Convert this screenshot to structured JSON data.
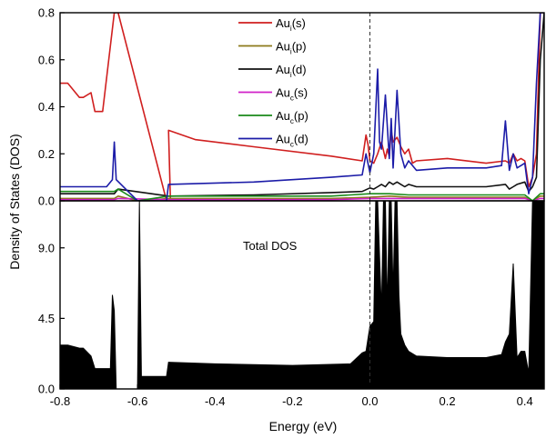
{
  "chart_data": [
    {
      "type": "line",
      "panel": "top",
      "title": "",
      "xlabel": "Energy (eV)",
      "ylabel": "Density of States (DOS)",
      "xlim": [
        -0.8,
        0.45
      ],
      "ylim": [
        0,
        0.8
      ],
      "yticks": [
        "0.0",
        "0.2",
        "0.4",
        "0.6",
        "0.8"
      ],
      "fermi_line_x": 0.0,
      "legend_position": "top-center",
      "series": [
        {
          "name": "Au_i(s)",
          "base": "Au",
          "sub": "i",
          "orb": "(s)",
          "color": "#d01f1f",
          "x": [
            -0.8,
            -0.78,
            -0.75,
            -0.74,
            -0.72,
            -0.71,
            -0.69,
            -0.66,
            -0.655,
            -0.65,
            -0.525,
            -0.515,
            -0.52,
            -0.45,
            -0.3,
            -0.1,
            -0.02,
            -0.01,
            -0.005,
            0.0,
            0.01,
            0.02,
            0.03,
            0.04,
            0.045,
            0.05,
            0.055,
            0.06,
            0.07,
            0.08,
            0.09,
            0.1,
            0.11,
            0.12,
            0.2,
            0.3,
            0.35,
            0.36,
            0.37,
            0.38,
            0.39,
            0.4,
            0.41,
            0.42,
            0.43,
            0.44,
            0.45
          ],
          "y": [
            0.5,
            0.5,
            0.44,
            0.44,
            0.46,
            0.38,
            0.38,
            0.8,
            0.8,
            0.8,
            0.0,
            0.0,
            0.3,
            0.26,
            0.23,
            0.19,
            0.17,
            0.28,
            0.24,
            0.17,
            0.16,
            0.2,
            0.25,
            0.18,
            0.22,
            0.19,
            0.3,
            0.25,
            0.27,
            0.23,
            0.2,
            0.22,
            0.16,
            0.17,
            0.18,
            0.16,
            0.17,
            0.16,
            0.2,
            0.17,
            0.18,
            0.17,
            0.06,
            0.1,
            0.2,
            0.8,
            0.8
          ]
        },
        {
          "name": "Au_i(p)",
          "base": "Au",
          "sub": "i",
          "orb": "(p)",
          "color": "#8c7a1a",
          "x": [
            -0.8,
            -0.66,
            -0.65,
            -0.6,
            -0.52,
            -0.3,
            -0.1,
            0.0,
            0.05,
            0.1,
            0.2,
            0.3,
            0.4,
            0.42,
            0.44,
            0.45
          ],
          "y": [
            0.01,
            0.01,
            0.02,
            0.0,
            0.01,
            0.01,
            0.01,
            0.015,
            0.02,
            0.015,
            0.015,
            0.015,
            0.015,
            0.0,
            0.02,
            0.02
          ]
        },
        {
          "name": "Au_i(d)",
          "base": "Au",
          "sub": "i",
          "orb": "(d)",
          "color": "#111111",
          "x": [
            -0.8,
            -0.66,
            -0.65,
            -0.52,
            -0.3,
            -0.1,
            -0.02,
            0.0,
            0.01,
            0.02,
            0.03,
            0.04,
            0.05,
            0.06,
            0.07,
            0.08,
            0.09,
            0.1,
            0.12,
            0.2,
            0.3,
            0.35,
            0.36,
            0.37,
            0.38,
            0.4,
            0.41,
            0.42,
            0.43,
            0.44,
            0.45
          ],
          "y": [
            0.03,
            0.03,
            0.05,
            0.02,
            0.025,
            0.035,
            0.04,
            0.055,
            0.05,
            0.06,
            0.07,
            0.06,
            0.08,
            0.07,
            0.08,
            0.07,
            0.06,
            0.07,
            0.06,
            0.06,
            0.06,
            0.07,
            0.05,
            0.06,
            0.07,
            0.08,
            0.04,
            0.06,
            0.1,
            0.6,
            0.8
          ]
        },
        {
          "name": "Au_c(s)",
          "base": "Au",
          "sub": "c",
          "orb": "(s)",
          "color": "#d020c8",
          "x": [
            -0.8,
            -0.66,
            -0.65,
            -0.52,
            -0.3,
            -0.1,
            0.0,
            0.1,
            0.2,
            0.3,
            0.4,
            0.42,
            0.44,
            0.45
          ],
          "y": [
            0.005,
            0.005,
            0.01,
            0.005,
            0.005,
            0.005,
            0.01,
            0.01,
            0.01,
            0.01,
            0.01,
            0.0,
            0.01,
            0.01
          ]
        },
        {
          "name": "Au_c(p)",
          "base": "Au",
          "sub": "c",
          "orb": "(p)",
          "color": "#1a8a1a",
          "x": [
            -0.8,
            -0.66,
            -0.65,
            -0.6,
            -0.52,
            -0.3,
            -0.1,
            0.0,
            0.05,
            0.1,
            0.2,
            0.3,
            0.4,
            0.42,
            0.44,
            0.45
          ],
          "y": [
            0.04,
            0.04,
            0.05,
            0.0,
            0.02,
            0.02,
            0.02,
            0.03,
            0.03,
            0.025,
            0.025,
            0.025,
            0.025,
            0.0,
            0.03,
            0.03
          ]
        },
        {
          "name": "Au_c(d)",
          "base": "Au",
          "sub": "c",
          "orb": "(d)",
          "color": "#1c1ca8",
          "x": [
            -0.8,
            -0.68,
            -0.665,
            -0.66,
            -0.655,
            -0.6,
            -0.525,
            -0.52,
            -0.3,
            -0.1,
            -0.02,
            -0.01,
            0.0,
            0.01,
            0.02,
            0.025,
            0.03,
            0.04,
            0.05,
            0.055,
            0.06,
            0.07,
            0.08,
            0.09,
            0.1,
            0.12,
            0.2,
            0.3,
            0.34,
            0.35,
            0.36,
            0.37,
            0.38,
            0.39,
            0.4,
            0.41,
            0.42,
            0.43,
            0.44,
            0.45
          ],
          "y": [
            0.06,
            0.06,
            0.09,
            0.25,
            0.09,
            0.0,
            0.0,
            0.07,
            0.08,
            0.1,
            0.11,
            0.2,
            0.12,
            0.2,
            0.56,
            0.25,
            0.22,
            0.45,
            0.18,
            0.35,
            0.14,
            0.47,
            0.2,
            0.14,
            0.17,
            0.13,
            0.14,
            0.14,
            0.15,
            0.34,
            0.13,
            0.2,
            0.14,
            0.15,
            0.16,
            0.03,
            0.1,
            0.5,
            0.8,
            0.8
          ]
        }
      ]
    },
    {
      "type": "area",
      "panel": "bottom",
      "xlabel": "Energy (eV)",
      "ylabel": "Density of States (DOS)",
      "xlim": [
        -0.8,
        0.45
      ],
      "ylim": [
        0,
        12
      ],
      "xticks": [
        "-0.8",
        "-0.6",
        "-0.4",
        "-0.2",
        "0.0",
        "0.2",
        "0.4"
      ],
      "yticks": [
        "0.0",
        "4.5",
        "9.0"
      ],
      "fermi_line_x": 0.0,
      "annotation": "Total DOS",
      "series": [
        {
          "name": "Total DOS",
          "color": "#000000",
          "x": [
            -0.8,
            -0.78,
            -0.75,
            -0.74,
            -0.72,
            -0.71,
            -0.69,
            -0.67,
            -0.665,
            -0.66,
            -0.655,
            -0.6,
            -0.595,
            -0.59,
            -0.525,
            -0.52,
            -0.4,
            -0.2,
            -0.05,
            -0.02,
            -0.01,
            0.0,
            0.01,
            0.015,
            0.02,
            0.03,
            0.035,
            0.04,
            0.045,
            0.05,
            0.055,
            0.06,
            0.065,
            0.07,
            0.075,
            0.08,
            0.09,
            0.1,
            0.12,
            0.2,
            0.3,
            0.34,
            0.35,
            0.36,
            0.37,
            0.38,
            0.39,
            0.4,
            0.41,
            0.42,
            0.425,
            0.43,
            0.44,
            0.45
          ],
          "y": [
            2.8,
            2.8,
            2.6,
            2.6,
            2.1,
            1.3,
            1.3,
            1.3,
            6.0,
            5.0,
            0.0,
            0.0,
            12.0,
            0.8,
            0.8,
            1.7,
            1.6,
            1.5,
            1.6,
            2.3,
            2.4,
            4.0,
            4.3,
            12.0,
            12.0,
            5.0,
            12.0,
            12.0,
            5.0,
            12.0,
            12.0,
            6.0,
            12.0,
            12.0,
            6.0,
            3.5,
            2.8,
            2.4,
            2.1,
            2.0,
            2.0,
            2.2,
            3.0,
            3.5,
            8.0,
            2.0,
            2.4,
            2.4,
            1.0,
            12.0,
            12.0,
            12.0,
            12.0,
            12.0
          ]
        }
      ]
    }
  ]
}
